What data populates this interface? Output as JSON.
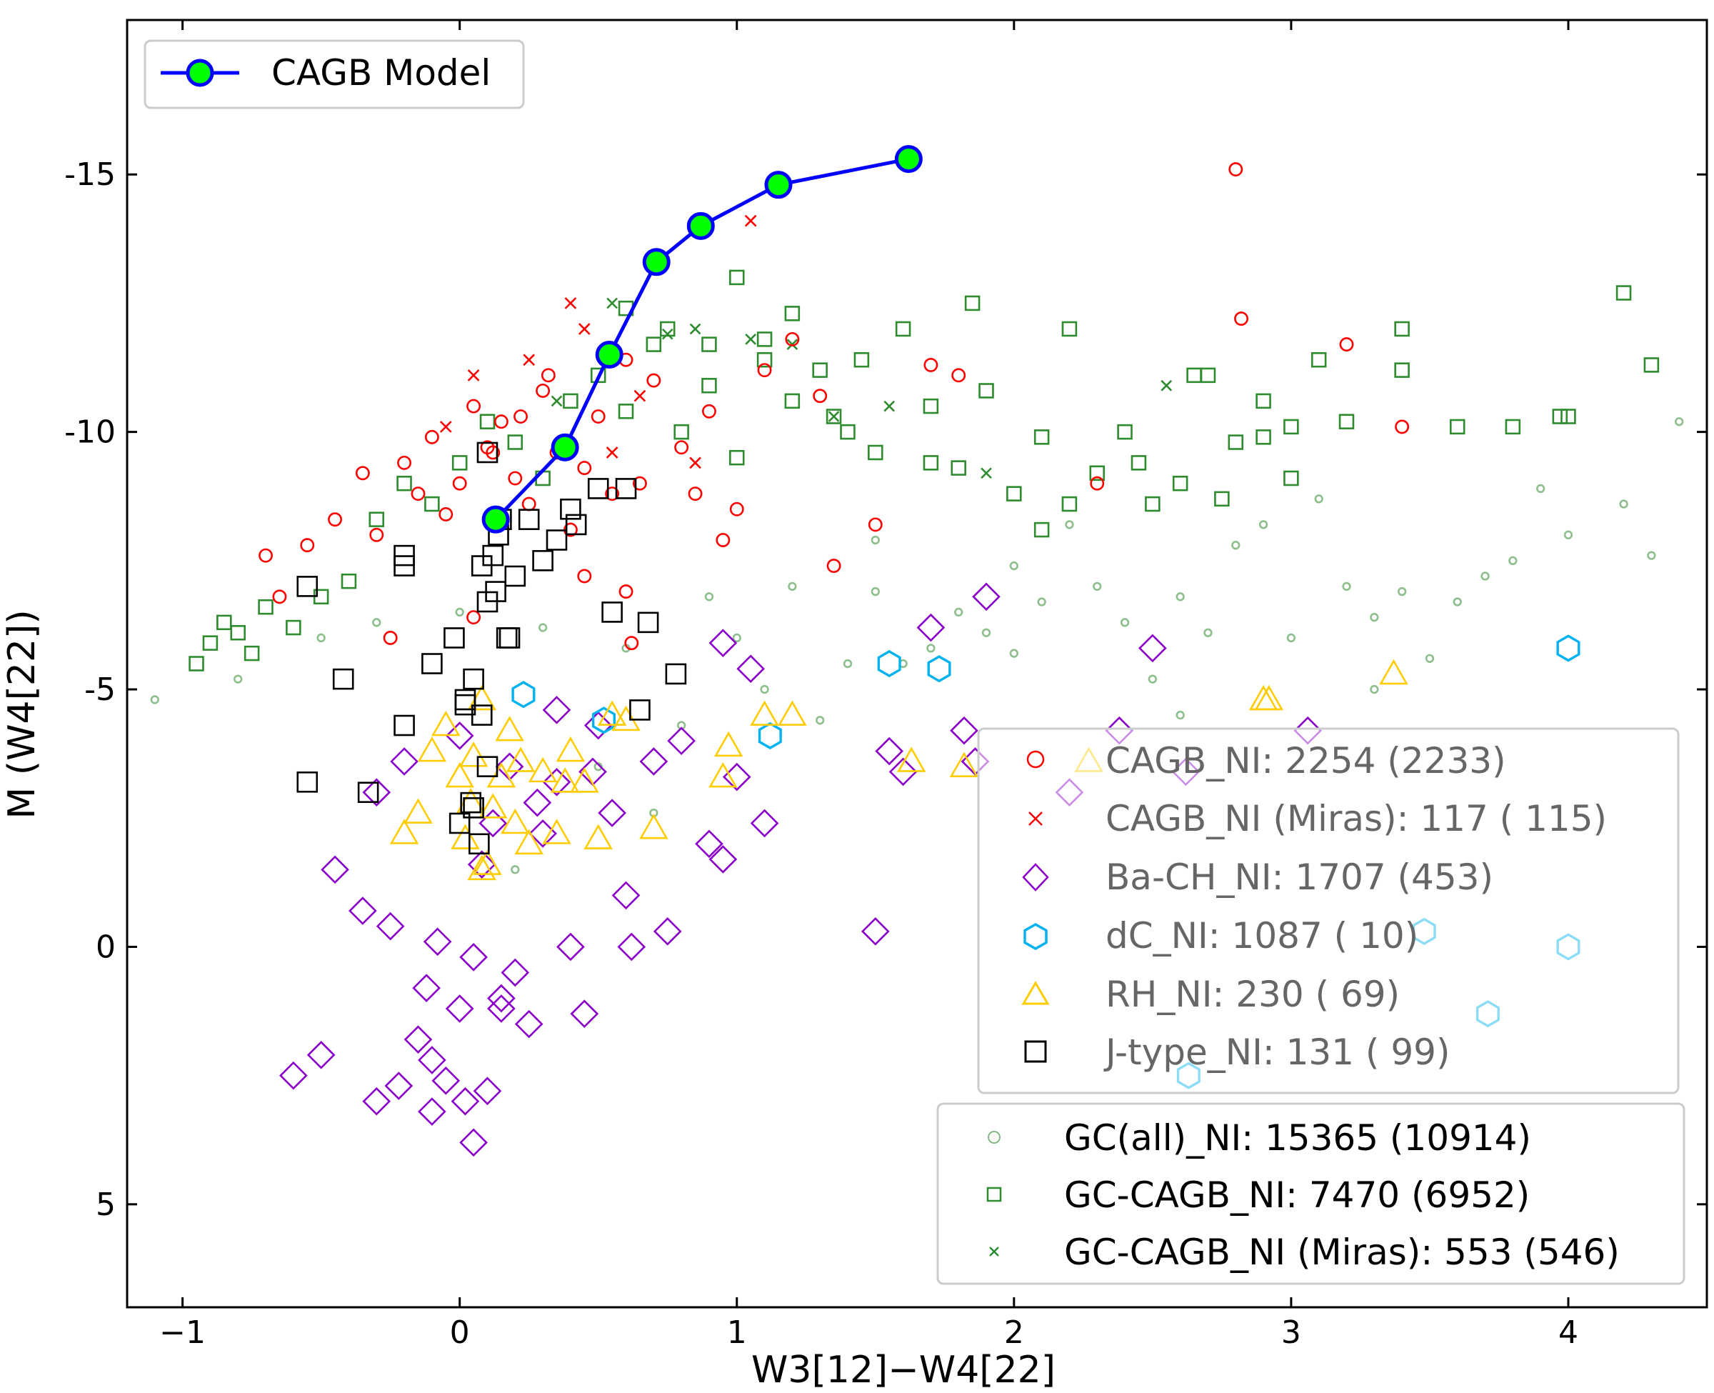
{
  "chart_data": {
    "type": "scatter",
    "title": "",
    "xlabel": "W3[12]−W4[22]",
    "ylabel": "M (W4[22])",
    "xlim": [
      -1.2,
      4.5
    ],
    "ylim": [
      7,
      -18
    ],
    "y_inverted": true,
    "x_ticks": [
      -1,
      0,
      1,
      2,
      3,
      4
    ],
    "x_tick_labels": [
      "−1",
      "0",
      "1",
      "2",
      "3",
      "4"
    ],
    "y_ticks": [
      -15,
      -10,
      -5,
      0,
      5
    ],
    "y_tick_labels": [
      "-15",
      "-10",
      "-5",
      "0",
      "5"
    ],
    "grid": false,
    "model": {
      "name": "CAGB Model",
      "line_color": "#0000ff",
      "marker_color": "#00ff00",
      "x": [
        0.13,
        0.38,
        0.54,
        0.71,
        0.87,
        1.15,
        1.62
      ],
      "y": [
        -8.3,
        -9.7,
        -11.5,
        -13.3,
        -14.0,
        -14.8,
        -15.3
      ]
    },
    "series": [
      {
        "name": "GC(all)_NI",
        "label": "GC(all)_NI: 15365 (10914)",
        "marker": "circle",
        "color": "#2e8b2e",
        "size": 0.45,
        "x": [
          -1.1,
          -0.8,
          -0.5,
          -0.3,
          0.0,
          0.3,
          0.6,
          0.9,
          1.2,
          1.5,
          1.8,
          2.1,
          2.4,
          2.7,
          3.0,
          3.3,
          3.6,
          3.8,
          4.0,
          4.2,
          4.4,
          1.0,
          1.4,
          1.7,
          2.0,
          2.3,
          2.6,
          2.9,
          3.2,
          3.5,
          3.7,
          1.1,
          1.3,
          1.6,
          1.9,
          2.2,
          2.5,
          2.8,
          3.1,
          3.4,
          0.8,
          0.5,
          0.2,
          4.3,
          3.9,
          2.0,
          1.5,
          0.7,
          2.6,
          3.3
        ],
        "y": [
          -4.8,
          -5.2,
          -6.0,
          -6.3,
          -6.5,
          -6.2,
          -5.8,
          -6.8,
          -7.0,
          -6.9,
          -6.5,
          -6.7,
          -6.3,
          -6.1,
          -6.0,
          -6.4,
          -6.7,
          -7.5,
          -8.0,
          -8.6,
          -10.2,
          -6.0,
          -5.5,
          -5.8,
          -7.4,
          -7.0,
          -6.8,
          -8.2,
          -7.0,
          -5.6,
          -7.2,
          -5.0,
          -4.4,
          -5.5,
          -6.1,
          -8.2,
          -5.2,
          -7.8,
          -8.7,
          -6.9,
          -4.3,
          -3.5,
          -1.5,
          -7.6,
          -8.9,
          -5.7,
          -7.9,
          -2.6,
          -4.5,
          -5.0
        ]
      },
      {
        "name": "GC-CAGB_NI",
        "label": "GC-CAGB_NI: 7470 (6952)",
        "marker": "square",
        "color": "#2e8b2e",
        "size": 0.7,
        "x": [
          -0.95,
          -0.9,
          -0.85,
          -0.8,
          -0.75,
          -0.7,
          -0.6,
          -0.5,
          -0.4,
          -0.3,
          -0.2,
          -0.1,
          0.0,
          0.1,
          0.2,
          0.3,
          0.4,
          0.5,
          0.6,
          0.7,
          0.8,
          0.9,
          1.0,
          1.1,
          1.2,
          1.3,
          1.4,
          1.5,
          1.6,
          1.7,
          1.8,
          1.9,
          2.0,
          2.1,
          2.2,
          2.3,
          2.4,
          2.5,
          2.6,
          2.7,
          2.8,
          2.9,
          3.0,
          3.1,
          3.2,
          3.4,
          3.6,
          3.8,
          3.97,
          4.0,
          4.2,
          4.3,
          0.6,
          0.75,
          1.0,
          1.2,
          1.45,
          1.7,
          1.85,
          0.9,
          1.1,
          1.35,
          2.2,
          2.65,
          2.9,
          3.4,
          2.75,
          3.0,
          2.45,
          2.1
        ],
        "y": [
          -5.5,
          -5.9,
          -6.3,
          -6.1,
          -5.7,
          -6.6,
          -6.2,
          -6.8,
          -7.1,
          -8.3,
          -9.0,
          -8.6,
          -9.4,
          -10.2,
          -9.8,
          -9.1,
          -10.6,
          -11.1,
          -10.4,
          -11.7,
          -10.0,
          -10.9,
          -9.5,
          -11.4,
          -10.6,
          -11.2,
          -10.0,
          -9.6,
          -12.0,
          -10.5,
          -9.3,
          -10.8,
          -8.8,
          -9.9,
          -12.0,
          -9.2,
          -10.0,
          -8.6,
          -9.0,
          -11.1,
          -9.8,
          -10.6,
          -9.1,
          -11.4,
          -10.2,
          -11.2,
          -10.1,
          -10.1,
          -10.3,
          -10.3,
          -12.7,
          -11.3,
          -12.4,
          -12.0,
          -13.0,
          -12.3,
          -11.4,
          -9.4,
          -12.5,
          -11.7,
          -11.8,
          -10.3,
          -8.6,
          -11.1,
          -9.9,
          -12.0,
          -8.7,
          -10.1,
          -9.4,
          -8.1
        ]
      },
      {
        "name": "GC-CAGB_NI (Miras)",
        "label": "GC-CAGB_NI (Miras): 553 (546)",
        "marker": "x",
        "color": "#2e8b2e",
        "size": 0.7,
        "x": [
          0.55,
          0.75,
          0.85,
          1.05,
          1.2,
          1.35,
          1.55,
          2.55,
          1.9,
          0.35
        ],
        "y": [
          -12.5,
          -11.9,
          -12.0,
          -11.8,
          -11.7,
          -10.3,
          -10.5,
          -10.9,
          -9.2,
          -10.6
        ]
      },
      {
        "name": "CAGB_NI",
        "label": "CAGB_NI: 2254 (2233)",
        "marker": "circle",
        "color": "#ff0000",
        "size": 0.8,
        "x": [
          -0.7,
          -0.65,
          -0.55,
          -0.45,
          -0.35,
          -0.3,
          -0.2,
          -0.15,
          -0.1,
          -0.05,
          0.0,
          0.05,
          0.1,
          0.15,
          0.2,
          0.25,
          0.3,
          0.35,
          0.4,
          0.45,
          0.5,
          0.55,
          0.6,
          0.65,
          0.7,
          0.8,
          0.9,
          1.0,
          1.1,
          1.2,
          1.3,
          1.5,
          1.7,
          1.8,
          2.8,
          2.82,
          3.2,
          3.4,
          2.3,
          1.35,
          0.95,
          0.6,
          0.45,
          0.05,
          -0.25,
          0.32,
          0.22,
          0.12,
          0.62,
          0.85
        ],
        "y": [
          -7.6,
          -6.8,
          -7.8,
          -8.3,
          -9.2,
          -8.0,
          -9.4,
          -8.8,
          -9.9,
          -8.4,
          -9.0,
          -10.5,
          -9.7,
          -10.2,
          -9.1,
          -8.6,
          -10.8,
          -9.6,
          -8.1,
          -9.3,
          -10.3,
          -8.8,
          -11.4,
          -9.0,
          -11.0,
          -9.7,
          -10.4,
          -8.5,
          -11.2,
          -11.8,
          -10.7,
          -8.2,
          -11.3,
          -11.1,
          -15.1,
          -12.2,
          -11.7,
          -10.1,
          -9.0,
          -7.4,
          -7.9,
          -6.9,
          -7.2,
          -6.4,
          -6.0,
          -11.1,
          -10.3,
          -9.6,
          -5.9,
          -8.8
        ]
      },
      {
        "name": "CAGB_NI (Miras)",
        "label": "CAGB_NI (Miras):  117 ( 115)",
        "marker": "x",
        "color": "#ff0000",
        "size": 0.75,
        "x": [
          1.05,
          0.4,
          0.05,
          -0.05,
          0.25,
          0.65,
          0.55,
          0.85,
          0.45
        ],
        "y": [
          -14.1,
          -12.5,
          -11.1,
          -10.1,
          -11.4,
          -10.7,
          -9.6,
          -9.4,
          -12.0
        ]
      },
      {
        "name": "Ba-CH_NI",
        "label": "Ba-CH_NI: 1707 (453)",
        "marker": "diamond",
        "color": "#8b00c9",
        "size": 1.0,
        "x": [
          -0.6,
          -0.5,
          -0.45,
          -0.35,
          -0.3,
          -0.3,
          -0.25,
          -0.2,
          -0.15,
          -0.12,
          -0.1,
          -0.08,
          -0.05,
          0.0,
          0.02,
          0.05,
          0.08,
          0.1,
          0.12,
          0.15,
          0.18,
          0.2,
          0.25,
          0.3,
          0.35,
          0.4,
          0.45,
          0.5,
          0.55,
          0.6,
          0.7,
          0.75,
          0.8,
          0.9,
          0.95,
          1.0,
          1.05,
          1.1,
          1.5,
          1.55,
          1.6,
          1.7,
          1.82,
          1.86,
          1.9,
          2.2,
          2.38,
          2.5,
          2.62,
          3.06,
          0.95,
          0.35,
          0.05,
          -0.1,
          0.15,
          0.28,
          0.62,
          0.48,
          -0.22,
          0.0
        ],
        "y": [
          2.5,
          2.1,
          -1.5,
          -0.7,
          -3.0,
          3.0,
          -0.4,
          -3.6,
          1.8,
          0.8,
          3.2,
          -0.1,
          2.6,
          1.2,
          3.0,
          0.2,
          -1.6,
          2.8,
          -2.4,
          1.0,
          -3.5,
          0.5,
          1.5,
          -2.2,
          -3.2,
          0.0,
          1.3,
          -4.3,
          -2.6,
          -1.0,
          -3.6,
          -0.3,
          -4.0,
          -2.0,
          -5.9,
          -3.3,
          -5.4,
          -2.4,
          -0.3,
          -3.8,
          -3.4,
          -6.2,
          -4.2,
          -3.6,
          -6.8,
          -3.0,
          -4.2,
          -5.8,
          -3.4,
          -4.2,
          -1.7,
          -4.6,
          3.8,
          2.2,
          1.2,
          -2.8,
          0.0,
          -3.4,
          2.7,
          -4.1
        ]
      },
      {
        "name": "dC_NI",
        "label": "dC_NI: 1087 (  10)",
        "marker": "hexagon",
        "color": "#00b2f0",
        "size": 1.0,
        "x": [
          0.23,
          0.52,
          1.12,
          1.55,
          1.73,
          4.0,
          3.48,
          4.0,
          3.71,
          2.63
        ],
        "y": [
          -4.9,
          -4.4,
          -4.1,
          -5.5,
          -5.4,
          -5.8,
          -0.3,
          0.0,
          1.3,
          2.5
        ]
      },
      {
        "name": "RH_NI",
        "label": "RH_NI: 230 ( 69)",
        "marker": "triangle",
        "color": "#ffcc00",
        "size": 1.0,
        "x": [
          -0.2,
          -0.15,
          -0.1,
          -0.05,
          0.0,
          0.02,
          0.05,
          0.08,
          0.1,
          0.12,
          0.15,
          0.18,
          0.2,
          0.22,
          0.25,
          0.3,
          0.35,
          0.4,
          0.45,
          0.55,
          0.7,
          0.95,
          0.97,
          1.1,
          1.2,
          1.63,
          1.82,
          2.27,
          2.9,
          2.92,
          3.37,
          0.6,
          0.5,
          0.08,
          0.38,
          0.04
        ],
        "y": [
          -2.2,
          -2.6,
          -3.8,
          -4.3,
          -3.3,
          -2.1,
          -3.7,
          -4.8,
          -1.6,
          -2.7,
          -3.3,
          -4.2,
          -2.4,
          -3.6,
          -2.0,
          -3.4,
          -2.2,
          -3.8,
          -3.2,
          -4.5,
          -2.3,
          -3.3,
          -3.9,
          -4.5,
          -4.5,
          -3.6,
          -3.5,
          -3.6,
          -4.8,
          -4.8,
          -5.3,
          -4.4,
          -2.1,
          -1.5,
          -3.2,
          -2.8
        ]
      },
      {
        "name": "J-type_NI",
        "label": "J-type_NI: 131 ( 99)",
        "marker": "square",
        "color": "#000000",
        "size": 1.0,
        "x": [
          -0.55,
          -0.42,
          -0.55,
          -0.33,
          -0.2,
          -0.2,
          -0.2,
          -0.1,
          -0.02,
          0.0,
          0.02,
          0.05,
          0.05,
          0.08,
          0.1,
          0.1,
          0.1,
          0.12,
          0.15,
          0.18,
          0.2,
          0.25,
          0.3,
          0.35,
          0.4,
          0.5,
          0.55,
          0.6,
          0.65,
          0.68,
          0.78,
          0.07,
          0.04,
          0.13,
          0.17,
          0.42,
          0.02,
          0.08,
          0.14
        ],
        "y": [
          -7.0,
          -5.2,
          -3.2,
          -3.0,
          -7.6,
          -7.4,
          -4.3,
          -5.5,
          -6.0,
          -2.4,
          -4.8,
          -5.2,
          -2.7,
          -4.5,
          -3.5,
          -6.7,
          -9.6,
          -7.6,
          -8.3,
          -6.0,
          -7.2,
          -8.3,
          -7.5,
          -7.9,
          -8.5,
          -8.9,
          -6.5,
          -8.9,
          -4.6,
          -6.3,
          -5.3,
          -2.0,
          -2.8,
          -6.9,
          -6.0,
          -8.2,
          -4.7,
          -7.4,
          -8.0
        ]
      }
    ]
  },
  "legend_top": {
    "entries": [
      {
        "label": "CAGB Model"
      }
    ]
  },
  "legend_mid": {
    "entries": [
      {
        "label": "CAGB_NI: 2254 (2233)"
      },
      {
        "label": "CAGB_NI (Miras):  117 ( 115)"
      },
      {
        "label": "Ba-CH_NI: 1707 (453)"
      },
      {
        "label": "dC_NI: 1087 (  10)"
      },
      {
        "label": "RH_NI: 230 ( 69)"
      },
      {
        "label": "J-type_NI: 131 ( 99)"
      }
    ]
  },
  "legend_bottom": {
    "entries": [
      {
        "label": "GC(all)_NI: 15365 (10914)"
      },
      {
        "label": "GC-CAGB_NI: 7470 (6952)"
      },
      {
        "label": "GC-CAGB_NI (Miras): 553 (546)"
      }
    ]
  },
  "colors": {
    "text_mid_legend": "#666666",
    "legend_border": "#cccccc"
  }
}
